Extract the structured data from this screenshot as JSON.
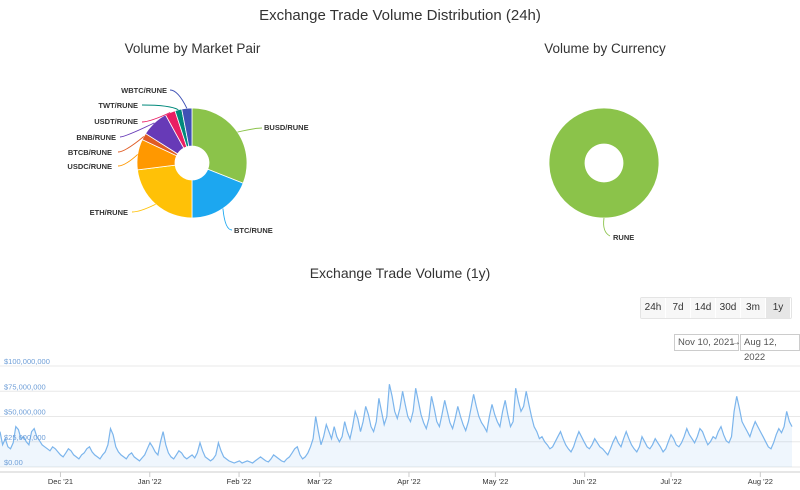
{
  "title": "Exchange Trade Volume Distribution (24h)",
  "pair_chart_title": "Volume by Market Pair",
  "currency_chart_title": "Volume by Currency",
  "volume_chart_title": "Exchange Trade Volume (1y)",
  "range_buttons": [
    "24h",
    "7d",
    "14d",
    "30d",
    "3m",
    "1y"
  ],
  "active_range": "1y",
  "date_from": "Nov 10, 2021",
  "date_arrow": "→",
  "date_to": "Aug 12, 2022",
  "chart_data": [
    {
      "type": "pie",
      "title": "Volume by Market Pair",
      "labels": [
        "BUSD/RUNE",
        "BTC/RUNE",
        "ETH/RUNE",
        "USDC/RUNE",
        "BTCB/RUNE",
        "BNB/RUNE",
        "USDT/RUNE",
        "TWT/RUNE",
        "WBTC/RUNE"
      ],
      "values": [
        31,
        19,
        23,
        9,
        2,
        8,
        3,
        2,
        3
      ],
      "colors": [
        "#8bc34a",
        "#1ca7f0",
        "#ffc107",
        "#ff9800",
        "#e05c24",
        "#673ab7",
        "#e91e63",
        "#00897b",
        "#3f51b5"
      ]
    },
    {
      "type": "pie",
      "title": "Volume by Currency",
      "labels": [
        "RUNE"
      ],
      "values": [
        100
      ],
      "colors": [
        "#8bc34a"
      ]
    },
    {
      "type": "area",
      "title": "Exchange Trade Volume (1y)",
      "x_start": "2021-11-10",
      "x_end": "2022-08-12",
      "x_tick_labels": [
        "Dec '21",
        "Jan '22",
        "Feb '22",
        "Mar '22",
        "Apr '22",
        "May '22",
        "Jun '22",
        "Jul '22",
        "Aug '22"
      ],
      "x_tick_dates": [
        "2021-12-01",
        "2022-01-01",
        "2022-02-01",
        "2022-03-01",
        "2022-04-01",
        "2022-05-01",
        "2022-06-01",
        "2022-07-01",
        "2022-08-01"
      ],
      "y_tick_labels": [
        "$0.00",
        "$25,000,000",
        "$50,000,000",
        "$75,000,000",
        "$100,000,000"
      ],
      "y_tick_values": [
        0,
        25000000,
        50000000,
        75000000,
        100000000
      ],
      "ylim": [
        0,
        100000000
      ],
      "line_color": "#7cb5ec",
      "values_musd": [
        35,
        22,
        28,
        20,
        18,
        24,
        40,
        37,
        28,
        30,
        25,
        22,
        35,
        38,
        30,
        26,
        22,
        20,
        18,
        16,
        20,
        18,
        15,
        12,
        10,
        14,
        18,
        16,
        12,
        10,
        8,
        12,
        14,
        18,
        20,
        15,
        12,
        10,
        8,
        12,
        15,
        22,
        38,
        32,
        20,
        15,
        12,
        10,
        8,
        12,
        14,
        10,
        8,
        6,
        9,
        12,
        18,
        24,
        20,
        15,
        12,
        25,
        35,
        22,
        14,
        10,
        8,
        12,
        16,
        14,
        10,
        8,
        10,
        12,
        9,
        14,
        24,
        16,
        10,
        8,
        6,
        8,
        12,
        24,
        16,
        10,
        8,
        6,
        5,
        4,
        5,
        6,
        4,
        5,
        6,
        5,
        4,
        6,
        8,
        10,
        8,
        6,
        5,
        8,
        12,
        10,
        8,
        6,
        5,
        8,
        10,
        14,
        18,
        20,
        12,
        8,
        10,
        14,
        20,
        28,
        50,
        35,
        22,
        30,
        42,
        35,
        28,
        40,
        30,
        25,
        30,
        45,
        35,
        28,
        40,
        55,
        48,
        35,
        45,
        60,
        52,
        40,
        35,
        45,
        68,
        55,
        42,
        50,
        82,
        70,
        55,
        48,
        58,
        75,
        62,
        50,
        45,
        55,
        78,
        65,
        52,
        44,
        38,
        48,
        70,
        58,
        45,
        40,
        52,
        66,
        55,
        44,
        38,
        48,
        60,
        50,
        42,
        36,
        45,
        58,
        72,
        60,
        50,
        44,
        40,
        35,
        50,
        62,
        52,
        45,
        40,
        55,
        66,
        52,
        40,
        45,
        78,
        65,
        55,
        60,
        75,
        62,
        50,
        40,
        35,
        28,
        30,
        25,
        22,
        18,
        20,
        25,
        30,
        35,
        28,
        22,
        18,
        15,
        20,
        28,
        35,
        30,
        25,
        20,
        18,
        22,
        28,
        24,
        20,
        18,
        15,
        12,
        18,
        25,
        30,
        24,
        20,
        28,
        35,
        28,
        22,
        18,
        15,
        20,
        30,
        25,
        20,
        18,
        22,
        28,
        24,
        20,
        15,
        18,
        25,
        32,
        28,
        22,
        20,
        24,
        30,
        38,
        32,
        28,
        24,
        30,
        38,
        35,
        28,
        22,
        25,
        30,
        28,
        35,
        40,
        32,
        26,
        24,
        30,
        55,
        70,
        58,
        45,
        40,
        35,
        30,
        38,
        45,
        40,
        35,
        30,
        25,
        20,
        18,
        24,
        32,
        38,
        34,
        40,
        55,
        45,
        40
      ]
    }
  ]
}
